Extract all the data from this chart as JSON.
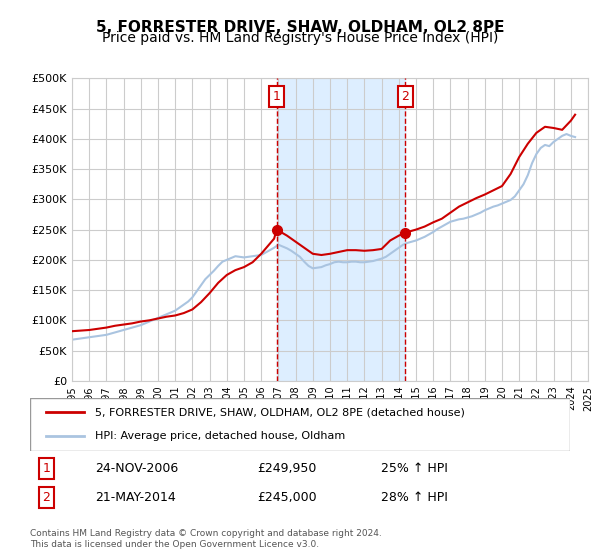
{
  "title": "5, FORRESTER DRIVE, SHAW, OLDHAM, OL2 8PE",
  "subtitle": "Price paid vs. HM Land Registry's House Price Index (HPI)",
  "title_fontsize": 11,
  "subtitle_fontsize": 10,
  "background_color": "#ffffff",
  "plot_bg_color": "#ffffff",
  "grid_color": "#cccccc",
  "hpi_line_color": "#aac4e0",
  "price_line_color": "#cc0000",
  "shaded_region_color": "#ddeeff",
  "ylim": [
    0,
    500000
  ],
  "yticks": [
    0,
    50000,
    100000,
    150000,
    200000,
    250000,
    300000,
    350000,
    400000,
    450000,
    500000
  ],
  "ytick_labels": [
    "£0",
    "£50K",
    "£100K",
    "£150K",
    "£200K",
    "£250K",
    "£300K",
    "£350K",
    "£400K",
    "£450K",
    "£500K"
  ],
  "sale1_date": 2006.9,
  "sale1_price": 249950,
  "sale1_label": "1",
  "sale1_display": "24-NOV-2006",
  "sale1_amount": "£249,950",
  "sale1_hpi": "25% ↑ HPI",
  "sale2_date": 2014.38,
  "sale2_price": 245000,
  "sale2_label": "2",
  "sale2_display": "21-MAY-2014",
  "sale2_amount": "£245,000",
  "sale2_hpi": "28% ↑ HPI",
  "legend_line1": "5, FORRESTER DRIVE, SHAW, OLDHAM, OL2 8PE (detached house)",
  "legend_line2": "HPI: Average price, detached house, Oldham",
  "footer": "Contains HM Land Registry data © Crown copyright and database right 2024.\nThis data is licensed under the Open Government Licence v3.0.",
  "hpi_data_x": [
    1995,
    1995.25,
    1995.5,
    1995.75,
    1996,
    1996.25,
    1996.5,
    1996.75,
    1997,
    1997.25,
    1997.5,
    1997.75,
    1998,
    1998.25,
    1998.5,
    1998.75,
    1999,
    1999.25,
    1999.5,
    1999.75,
    2000,
    2000.25,
    2000.5,
    2000.75,
    2001,
    2001.25,
    2001.5,
    2001.75,
    2002,
    2002.25,
    2002.5,
    2002.75,
    2003,
    2003.25,
    2003.5,
    2003.75,
    2004,
    2004.25,
    2004.5,
    2004.75,
    2005,
    2005.25,
    2005.5,
    2005.75,
    2006,
    2006.25,
    2006.5,
    2006.75,
    2007,
    2007.25,
    2007.5,
    2007.75,
    2008,
    2008.25,
    2008.5,
    2008.75,
    2009,
    2009.25,
    2009.5,
    2009.75,
    2010,
    2010.25,
    2010.5,
    2010.75,
    2011,
    2011.25,
    2011.5,
    2011.75,
    2012,
    2012.25,
    2012.5,
    2012.75,
    2013,
    2013.25,
    2013.5,
    2013.75,
    2014,
    2014.25,
    2014.5,
    2014.75,
    2015,
    2015.25,
    2015.5,
    2015.75,
    2016,
    2016.25,
    2016.5,
    2016.75,
    2017,
    2017.25,
    2017.5,
    2017.75,
    2018,
    2018.25,
    2018.5,
    2018.75,
    2019,
    2019.25,
    2019.5,
    2019.75,
    2020,
    2020.25,
    2020.5,
    2020.75,
    2021,
    2021.25,
    2021.5,
    2021.75,
    2022,
    2022.25,
    2022.5,
    2022.75,
    2023,
    2023.25,
    2023.5,
    2023.75,
    2024,
    2024.25
  ],
  "hpi_data_y": [
    68000,
    69000,
    70000,
    71000,
    72000,
    73000,
    74000,
    75000,
    76000,
    78000,
    80000,
    82000,
    84000,
    86000,
    88000,
    90000,
    92000,
    95000,
    98000,
    101000,
    104000,
    107000,
    110000,
    113000,
    116000,
    121000,
    126000,
    131000,
    138000,
    148000,
    158000,
    168000,
    175000,
    182000,
    190000,
    197000,
    200000,
    203000,
    206000,
    205000,
    204000,
    205000,
    206000,
    207000,
    208000,
    212000,
    216000,
    220000,
    225000,
    222000,
    219000,
    215000,
    210000,
    205000,
    197000,
    190000,
    186000,
    187000,
    188000,
    191000,
    193000,
    196000,
    197000,
    196000,
    196000,
    197000,
    197000,
    196000,
    196000,
    197000,
    198000,
    200000,
    202000,
    205000,
    210000,
    215000,
    220000,
    225000,
    228000,
    230000,
    232000,
    235000,
    238000,
    242000,
    246000,
    251000,
    255000,
    259000,
    263000,
    265000,
    267000,
    268000,
    270000,
    272000,
    275000,
    278000,
    282000,
    285000,
    288000,
    290000,
    293000,
    296000,
    299000,
    305000,
    315000,
    325000,
    340000,
    360000,
    375000,
    385000,
    390000,
    388000,
    395000,
    400000,
    405000,
    408000,
    405000,
    403000
  ],
  "price_data_x": [
    1995,
    1995.5,
    1996,
    1996.5,
    1997,
    1997.5,
    1998,
    1998.5,
    1999,
    1999.5,
    2000,
    2000.5,
    2001,
    2001.5,
    2002,
    2002.5,
    2003,
    2003.5,
    2004,
    2004.5,
    2005,
    2005.5,
    2006,
    2006.75,
    2006.9,
    2007.5,
    2008,
    2008.5,
    2009,
    2009.5,
    2010,
    2010.5,
    2011,
    2011.5,
    2012,
    2012.5,
    2013,
    2013.5,
    2014,
    2014.38,
    2015,
    2015.5,
    2016,
    2016.5,
    2017,
    2017.5,
    2018,
    2018.5,
    2019,
    2019.5,
    2020,
    2020.5,
    2021,
    2021.5,
    2022,
    2022.5,
    2023,
    2023.5,
    2024,
    2024.25
  ],
  "price_data_y": [
    82000,
    83000,
    84000,
    86000,
    88000,
    91000,
    93000,
    95000,
    98000,
    100000,
    103000,
    106000,
    108000,
    112000,
    118000,
    130000,
    145000,
    162000,
    175000,
    183000,
    188000,
    196000,
    210000,
    235000,
    249950,
    240000,
    230000,
    220000,
    210000,
    208000,
    210000,
    213000,
    216000,
    216000,
    215000,
    216000,
    218000,
    232000,
    240000,
    245000,
    250000,
    255000,
    262000,
    268000,
    278000,
    288000,
    295000,
    302000,
    308000,
    315000,
    322000,
    342000,
    370000,
    392000,
    410000,
    420000,
    418000,
    415000,
    430000,
    440000
  ]
}
